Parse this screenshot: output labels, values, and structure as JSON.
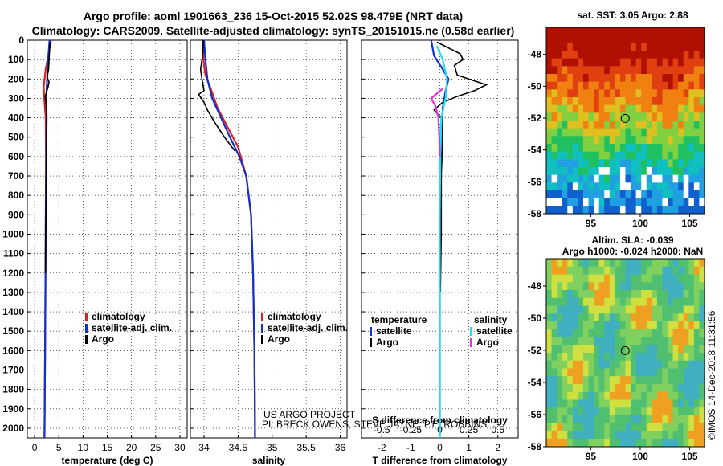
{
  "title_line1": "Argo profile: aoml 1901663_236 15-Oct-2015 52.02S 98.479E (NRT data)",
  "title_line2": "Climatology: CARS2009. Satellite-adjusted climatology: synTS_20151015.nc (0.58d earlier)",
  "colors": {
    "climatology": "#e02020",
    "satellite_adj": "#1030d0",
    "argo": "#000000",
    "salinity_sat": "#20e0f0",
    "salinity_argo": "#e030e0"
  },
  "chart_data": [
    {
      "type": "line",
      "name": "temperature",
      "xlabel": "temperature (deg C)",
      "ylabel": "depth",
      "xlim": [
        -1.5,
        31.5
      ],
      "ylim": [
        2050,
        0
      ],
      "xticks": [
        0,
        5,
        10,
        15,
        20,
        25,
        30
      ],
      "yticks": [
        0,
        100,
        200,
        300,
        400,
        500,
        600,
        700,
        800,
        900,
        1000,
        1100,
        1200,
        1300,
        1400,
        1500,
        1600,
        1700,
        1800,
        1900,
        2000
      ],
      "legend": [
        "climatology",
        "satellite-adj. clim.",
        "Argo"
      ],
      "series": [
        {
          "name": "climatology",
          "points": [
            [
              3.4,
              0
            ],
            [
              3.0,
              60
            ],
            [
              2.3,
              150
            ],
            [
              1.9,
              240
            ],
            [
              2.0,
              300
            ],
            [
              2.3,
              400
            ],
            [
              2.35,
              600
            ],
            [
              2.3,
              1000
            ],
            [
              2.2,
              1500
            ],
            [
              2.05,
              2050
            ]
          ]
        },
        {
          "name": "satellite-adj. clim.",
          "points": [
            [
              3.1,
              0
            ],
            [
              2.8,
              100
            ],
            [
              2.6,
              200
            ],
            [
              2.4,
              300
            ],
            [
              2.5,
              400
            ],
            [
              2.4,
              600
            ],
            [
              2.3,
              1000
            ],
            [
              2.2,
              1500
            ],
            [
              2.05,
              2050
            ]
          ]
        },
        {
          "name": "Argo",
          "points": [
            [
              3.2,
              10
            ],
            [
              3.1,
              50
            ],
            [
              2.9,
              150
            ],
            [
              2.6,
              190
            ],
            [
              3.0,
              215
            ],
            [
              2.8,
              240
            ],
            [
              2.2,
              290
            ],
            [
              2.4,
              330
            ],
            [
              2.5,
              400
            ],
            [
              2.45,
              600
            ],
            [
              2.4,
              800
            ],
            [
              2.3,
              1000
            ],
            [
              2.25,
              1200
            ]
          ]
        }
      ]
    },
    {
      "type": "line",
      "name": "salinity",
      "xlabel": "salinity",
      "ylabel": "depth",
      "xlim": [
        33.8,
        36.1
      ],
      "ylim": [
        2050,
        0
      ],
      "xticks": [
        34,
        34.5,
        35,
        35.5,
        36
      ],
      "xticklabels": [
        "34",
        "34.5",
        "35",
        "35.5",
        "36"
      ],
      "legend": [
        "climatology",
        "satellite-adj. clim.",
        "Argo"
      ],
      "series": [
        {
          "name": "climatology",
          "points": [
            [
              33.99,
              0
            ],
            [
              33.99,
              100
            ],
            [
              34.02,
              180
            ],
            [
              34.1,
              250
            ],
            [
              34.2,
              350
            ],
            [
              34.35,
              450
            ],
            [
              34.5,
              550
            ],
            [
              34.62,
              700
            ],
            [
              34.69,
              900
            ],
            [
              34.72,
              1200
            ],
            [
              34.74,
              1600
            ],
            [
              34.75,
              2050
            ]
          ]
        },
        {
          "name": "satellite-adj. clim.",
          "points": [
            [
              34.0,
              0
            ],
            [
              34.02,
              100
            ],
            [
              34.05,
              200
            ],
            [
              34.12,
              300
            ],
            [
              34.25,
              400
            ],
            [
              34.38,
              500
            ],
            [
              34.52,
              600
            ],
            [
              34.62,
              700
            ],
            [
              34.69,
              900
            ],
            [
              34.72,
              1200
            ],
            [
              34.74,
              1600
            ],
            [
              34.75,
              2050
            ]
          ]
        },
        {
          "name": "Argo",
          "points": [
            [
              33.99,
              0
            ],
            [
              33.98,
              80
            ],
            [
              33.95,
              150
            ],
            [
              33.97,
              200
            ],
            [
              34.0,
              260
            ],
            [
              33.92,
              280
            ],
            [
              34.0,
              320
            ],
            [
              34.05,
              360
            ],
            [
              34.15,
              420
            ],
            [
              34.3,
              500
            ],
            [
              34.45,
              570
            ]
          ]
        }
      ]
    },
    {
      "type": "line",
      "name": "difference",
      "xlabel": "T difference from climatology",
      "top_xlabel": "S difference from climatology",
      "ylabel": "depth",
      "xlim": [
        -2.7,
        2.7
      ],
      "ylim": [
        2050,
        0
      ],
      "xticks": [
        -2,
        -1,
        0,
        1,
        2
      ],
      "top_xticks": [
        -0.5,
        -0.25,
        0,
        0.25,
        0.5
      ],
      "top_xticklabels": [
        "-0.5",
        "-0.25",
        "0",
        "0.25",
        "0.5"
      ],
      "legend_temperature": [
        "temperature",
        "satellite",
        "Argo"
      ],
      "legend_salinity": [
        "salinity",
        "satellite",
        "Argo"
      ],
      "series": [
        {
          "name": "T satellite",
          "points": [
            [
              -0.3,
              0
            ],
            [
              -0.2,
              80
            ],
            [
              0.1,
              150
            ],
            [
              0.3,
              200
            ],
            [
              0.2,
              260
            ],
            [
              0.1,
              350
            ],
            [
              0.05,
              500
            ],
            [
              0.02,
              800
            ],
            [
              0.0,
              1200
            ],
            [
              0.0,
              2050
            ]
          ]
        },
        {
          "name": "T Argo",
          "points": [
            [
              -0.1,
              10
            ],
            [
              0.3,
              40
            ],
            [
              0.7,
              70
            ],
            [
              0.8,
              100
            ],
            [
              0.5,
              130
            ],
            [
              0.6,
              180
            ],
            [
              1.2,
              210
            ],
            [
              1.6,
              230
            ],
            [
              1.2,
              260
            ],
            [
              0.6,
              290
            ],
            [
              0.1,
              320
            ],
            [
              -0.2,
              360
            ],
            [
              0.05,
              400
            ],
            [
              0.1,
              500
            ],
            [
              0.05,
              700
            ],
            [
              0.05,
              1000
            ],
            [
              0.02,
              1300
            ]
          ]
        },
        {
          "name": "S satellite",
          "points": [
            [
              -0.1,
              30
            ],
            [
              0.1,
              100
            ],
            [
              0.25,
              200
            ],
            [
              0.2,
              300
            ],
            [
              0.05,
              400
            ],
            [
              0.02,
              600
            ],
            [
              0.0,
              900
            ],
            [
              0.0,
              2050
            ]
          ]
        },
        {
          "name": "S Argo",
          "points": [
            [
              0.1,
              250
            ],
            [
              -0.3,
              300
            ],
            [
              -0.15,
              340
            ],
            [
              -0.05,
              400
            ],
            [
              -0.02,
              500
            ],
            [
              0.0,
              600
            ]
          ]
        }
      ]
    }
  ],
  "credits": {
    "line1": "US ARGO PROJECT",
    "line2": "PI: BRECK OWENS, STEVE JAYNE, P.E. ROBBINS"
  },
  "sst_map": {
    "title": "sat. SST: 3.05 Argo: 2.88",
    "lat_ticks": [
      "-48",
      "-50",
      "-52",
      "-54",
      "-56",
      "-58"
    ],
    "lon_ticks": [
      "95",
      "100",
      "105"
    ]
  },
  "sla_map": {
    "title1": "Altim. SLA: -0.039",
    "title2": "Argo h1000: -0.024 h2000: NaN",
    "lat_ticks": [
      "-48",
      "-50",
      "-52",
      "-54",
      "-56",
      "-58"
    ],
    "lon_ticks": [
      "95",
      "100",
      "105"
    ]
  },
  "footer": "©IMOS 14-Dec-2018 11:31:56"
}
